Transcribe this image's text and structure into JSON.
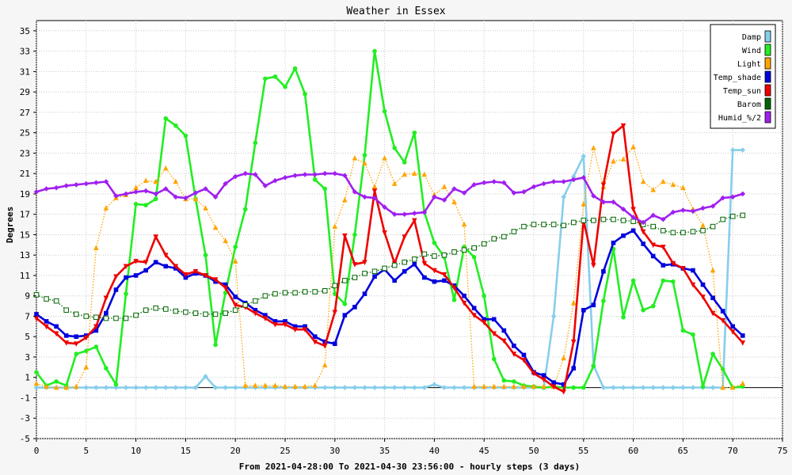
{
  "chart_data": {
    "type": "line",
    "title": "Weather in Essex",
    "xlabel": "From 2021-04-28:00 To 2021-04-30 23:56:00 - hourly steps (3 days)",
    "ylabel": "Degrees",
    "xlim": [
      0,
      75
    ],
    "ylim": [
      -5,
      36
    ],
    "x_ticks": [
      0,
      5,
      10,
      15,
      20,
      25,
      30,
      35,
      40,
      45,
      50,
      55,
      60,
      65,
      70,
      75
    ],
    "y_ticks": [
      -5,
      -3,
      -1,
      1,
      3,
      5,
      7,
      9,
      11,
      13,
      15,
      17,
      19,
      21,
      23,
      25,
      27,
      29,
      31,
      33,
      35
    ],
    "grid": true,
    "legend_position": "top-right",
    "series": [
      {
        "name": "Damp",
        "color": "#87ceeb",
        "marker": "diamond",
        "style": "solid",
        "values": [
          0,
          0,
          0,
          0,
          0,
          0,
          0,
          0,
          0,
          0,
          0,
          0,
          0,
          0,
          0,
          0,
          0,
          1.1,
          0,
          0,
          0,
          0,
          0,
          0,
          0,
          0,
          0,
          0,
          0,
          0,
          0,
          0,
          0,
          0,
          0,
          0,
          0,
          0,
          0,
          0,
          0.3,
          0,
          0,
          0,
          0,
          0,
          0,
          0,
          0,
          0,
          0,
          0,
          7,
          18.7,
          20.7,
          22.7,
          2.2,
          0,
          0,
          0,
          0,
          0,
          0,
          0,
          0,
          0,
          0,
          0,
          0,
          0,
          23.3,
          23.3
        ]
      },
      {
        "name": "Wind",
        "color": "#22ee22",
        "marker": "circle",
        "style": "solid",
        "values": [
          1.5,
          0.2,
          0.6,
          0.2,
          3.3,
          3.6,
          4.0,
          1.9,
          0.3,
          9.2,
          18.0,
          17.9,
          18.5,
          26.4,
          25.7,
          24.7,
          18.5,
          13.0,
          4.2,
          9.3,
          13.8,
          17.5,
          24.0,
          30.3,
          30.5,
          29.5,
          31.3,
          28.8,
          20.4,
          19.5,
          9.2,
          8.2,
          15.0,
          22.8,
          33.0,
          27.1,
          23.5,
          22.1,
          25.0,
          17.2,
          14.2,
          12.8,
          8.6,
          13.8,
          12.8,
          9.0,
          2.8,
          0.7,
          0.6,
          0.2,
          0.1,
          0.0,
          0.1,
          0.0,
          0.0,
          0.0,
          2.1,
          8.5,
          13.6,
          6.9,
          10.5,
          7.6,
          8.0,
          10.5,
          10.4,
          5.6,
          5.2,
          0.1,
          3.3,
          1.8,
          0.0,
          0.1
        ]
      },
      {
        "name": "Light",
        "color": "#ffa500",
        "marker": "triangle",
        "style": "dotted",
        "values": [
          0.4,
          0.1,
          0.0,
          0.0,
          0.1,
          2.0,
          13.7,
          17.6,
          18.6,
          18.9,
          19.6,
          20.3,
          20.2,
          21.5,
          20.2,
          18.5,
          18.5,
          17.6,
          15.7,
          14.4,
          12.4,
          0.2,
          0.2,
          0.2,
          0.2,
          0.1,
          0.1,
          0.1,
          0.2,
          2.2,
          15.8,
          18.4,
          22.5,
          22.0,
          19.7,
          22.5,
          20.0,
          20.9,
          21.0,
          20.9,
          18.9,
          19.7,
          18.2,
          16.0,
          0.1,
          0.1,
          0.1,
          0.1,
          0.1,
          0.1,
          0.1,
          0.1,
          0.1,
          2.9,
          8.3,
          18.0,
          23.5,
          19.7,
          22.2,
          22.4,
          23.6,
          20.2,
          19.4,
          20.2,
          19.9,
          19.6,
          17.5,
          15.9,
          11.5,
          0.0,
          0.0,
          0.4
        ]
      },
      {
        "name": "Temp_shade",
        "color": "#0000dd",
        "marker": "square",
        "style": "solid",
        "values": [
          7.2,
          6.5,
          6.0,
          5.1,
          5.0,
          5.1,
          5.6,
          7.3,
          9.6,
          10.8,
          11.0,
          11.5,
          12.3,
          11.9,
          11.7,
          10.8,
          11.2,
          11.0,
          10.4,
          10.1,
          8.9,
          8.3,
          7.6,
          7.1,
          6.5,
          6.5,
          6.0,
          6.0,
          5.0,
          4.5,
          4.3,
          7.1,
          7.9,
          9.2,
          10.9,
          11.6,
          10.5,
          11.4,
          12.1,
          10.8,
          10.4,
          10.5,
          10.0,
          9.0,
          7.8,
          6.7,
          6.7,
          5.6,
          4.1,
          3.2,
          1.5,
          1.2,
          0.5,
          0.3,
          1.9,
          7.6,
          8.1,
          11.4,
          14.2,
          14.9,
          15.4,
          14.1,
          12.9,
          12.0,
          12.1,
          11.7,
          11.5,
          10.1,
          8.8,
          7.5,
          6.0,
          5.1
        ]
      },
      {
        "name": "Temp_sun",
        "color": "#ee0000",
        "marker": "invtriangle",
        "style": "solid",
        "values": [
          6.8,
          6.0,
          5.3,
          4.4,
          4.3,
          4.9,
          6.0,
          8.8,
          10.9,
          11.9,
          12.4,
          12.3,
          14.8,
          13.0,
          11.9,
          11.1,
          11.4,
          11.0,
          10.6,
          9.8,
          8.1,
          7.9,
          7.3,
          6.8,
          6.2,
          6.2,
          5.7,
          5.7,
          4.5,
          4.1,
          7.4,
          14.9,
          12.1,
          12.3,
          19.3,
          15.2,
          12.2,
          14.8,
          16.4,
          12.2,
          11.5,
          11.1,
          9.8,
          8.3,
          7.1,
          6.4,
          5.3,
          4.6,
          3.3,
          2.7,
          1.4,
          0.8,
          0.1,
          -0.4,
          4.5,
          16.4,
          12.0,
          19.9,
          24.9,
          25.7,
          17.5,
          15.3,
          14.0,
          13.8,
          12.2,
          11.7,
          10.1,
          8.9,
          7.3,
          6.6,
          5.5,
          4.4
        ]
      },
      {
        "name": "Barom",
        "color": "#006400",
        "marker": "hollow-square",
        "style": "dotted",
        "values": [
          9.1,
          8.7,
          8.5,
          7.6,
          7.2,
          7.0,
          6.9,
          6.8,
          6.8,
          6.8,
          7.1,
          7.6,
          7.8,
          7.7,
          7.5,
          7.4,
          7.3,
          7.2,
          7.2,
          7.3,
          7.6,
          8.1,
          8.5,
          9.0,
          9.2,
          9.3,
          9.3,
          9.4,
          9.4,
          9.5,
          10.0,
          10.5,
          10.8,
          11.2,
          11.4,
          11.7,
          12.0,
          12.3,
          12.6,
          13.1,
          12.9,
          13.0,
          13.3,
          13.5,
          13.7,
          14.1,
          14.6,
          14.8,
          15.3,
          15.8,
          16.0,
          16.0,
          16.0,
          15.9,
          16.2,
          16.4,
          16.4,
          16.5,
          16.5,
          16.4,
          16.3,
          16.0,
          15.8,
          15.4,
          15.2,
          15.2,
          15.3,
          15.4,
          15.8,
          16.5,
          16.8,
          16.9
        ]
      },
      {
        "name": "Humid_%/2",
        "color": "#a020f0",
        "marker": "diamond",
        "style": "solid",
        "values": [
          19.2,
          19.5,
          19.6,
          19.8,
          19.9,
          20.0,
          20.1,
          20.2,
          18.8,
          19.0,
          19.2,
          19.3,
          19.0,
          19.5,
          18.7,
          18.6,
          19.1,
          19.5,
          18.7,
          20.0,
          20.7,
          21.0,
          20.9,
          19.8,
          20.3,
          20.6,
          20.8,
          20.9,
          20.9,
          21.0,
          21.0,
          20.8,
          19.2,
          18.7,
          18.6,
          17.7,
          17.0,
          17.0,
          17.1,
          17.2,
          18.7,
          18.4,
          19.5,
          19.1,
          19.9,
          20.1,
          20.2,
          20.1,
          19.1,
          19.2,
          19.7,
          20.0,
          20.2,
          20.2,
          20.4,
          20.6,
          18.8,
          18.2,
          18.2,
          17.5,
          16.7,
          16.2,
          16.9,
          16.5,
          17.2,
          17.4,
          17.3,
          17.6,
          17.8,
          18.6,
          18.7,
          19.0
        ]
      }
    ]
  }
}
